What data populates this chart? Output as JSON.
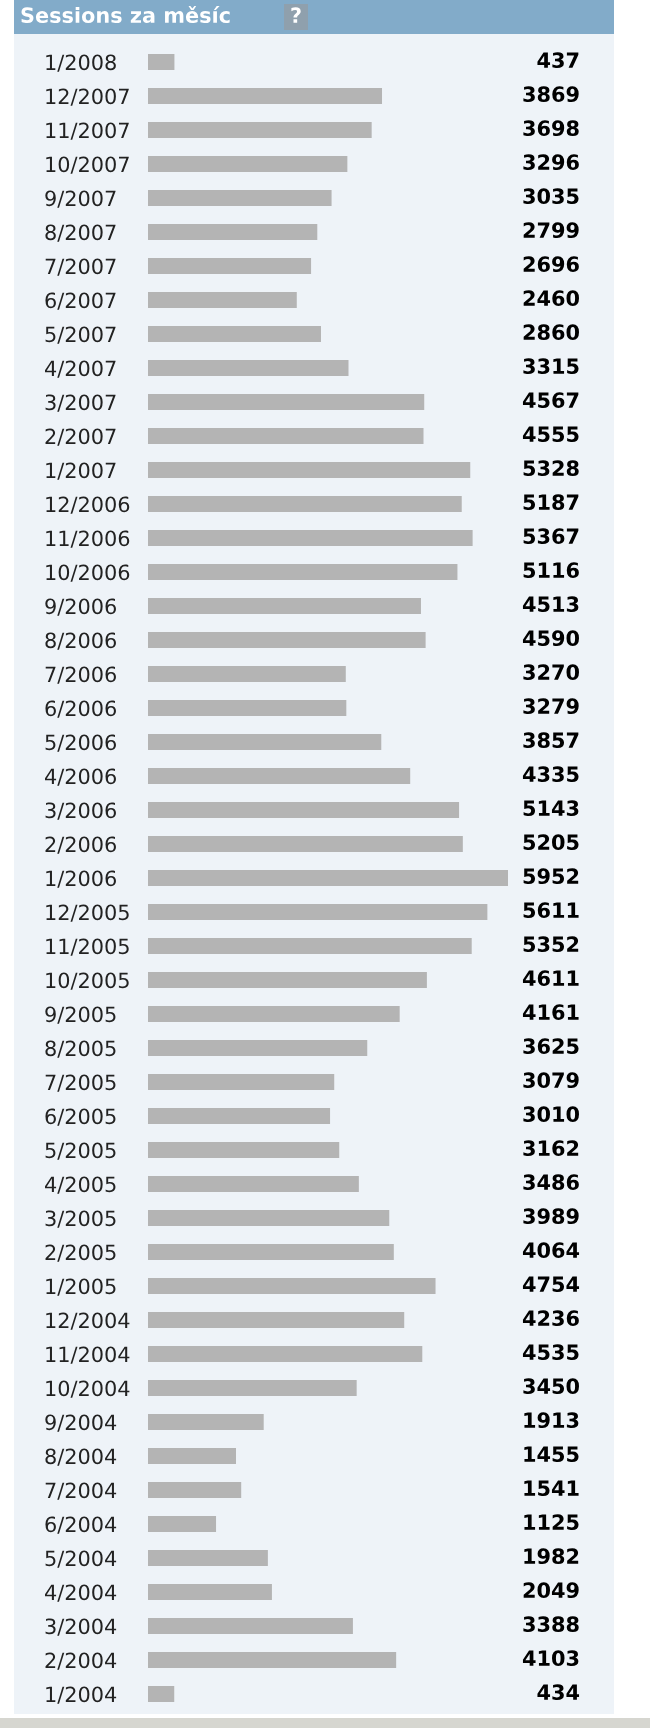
{
  "chart_data": {
    "type": "bar",
    "orientation": "horizontal",
    "title": "Sessions za měsíc",
    "annotations": [
      "?"
    ],
    "data_labels": true,
    "grid": false,
    "legend": false,
    "tick_labels": "y",
    "color": "#b4b4b4",
    "categories": [
      "1/2008",
      "12/2007",
      "11/2007",
      "10/2007",
      "9/2007",
      "8/2007",
      "7/2007",
      "6/2007",
      "5/2007",
      "4/2007",
      "3/2007",
      "2/2007",
      "1/2007",
      "12/2006",
      "11/2006",
      "10/2006",
      "9/2006",
      "8/2006",
      "7/2006",
      "6/2006",
      "5/2006",
      "4/2006",
      "3/2006",
      "2/2006",
      "1/2006",
      "12/2005",
      "11/2005",
      "10/2005",
      "9/2005",
      "8/2005",
      "7/2005",
      "6/2005",
      "5/2005",
      "4/2005",
      "3/2005",
      "2/2005",
      "1/2005",
      "12/2004",
      "11/2004",
      "10/2004",
      "9/2004",
      "8/2004",
      "7/2004",
      "6/2004",
      "5/2004",
      "4/2004",
      "3/2004",
      "2/2004",
      "1/2004"
    ],
    "values": [
      437,
      3869,
      3698,
      3296,
      3035,
      2799,
      2696,
      2460,
      2860,
      3315,
      4567,
      4555,
      5328,
      5187,
      5367,
      5116,
      4513,
      4590,
      3270,
      3279,
      3857,
      4335,
      5143,
      5205,
      5952,
      5611,
      5352,
      4611,
      4161,
      3625,
      3079,
      3010,
      3162,
      3486,
      3989,
      4064,
      4754,
      4236,
      4535,
      3450,
      1913,
      1455,
      1541,
      1125,
      1982,
      2049,
      3388,
      4103,
      434
    ]
  }
}
